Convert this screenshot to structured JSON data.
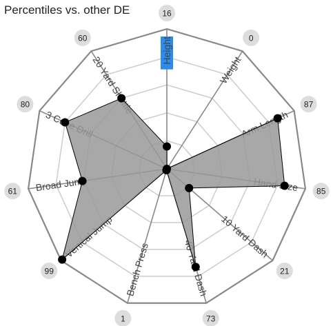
{
  "chart_data": {
    "type": "radar",
    "title": "Percentiles vs. other DE",
    "range": [
      0,
      100
    ],
    "grid_levels": [
      20,
      40,
      60,
      80
    ],
    "highlighted_axis": "Height",
    "colors": {
      "fill": "#999999",
      "outline": "#000000",
      "ring": "#888888",
      "grid": "#cccccc",
      "badge": "#dddddd",
      "highlight": "#2b8cec"
    },
    "axes": [
      {
        "label": "Height",
        "value": 16
      },
      {
        "label": "Weight",
        "value": 0
      },
      {
        "label": "Arm Length",
        "value": 87
      },
      {
        "label": "Hand Size",
        "value": 85
      },
      {
        "label": "10 Yard Dash",
        "value": 21
      },
      {
        "label": "40 Yard Dash",
        "value": 73
      },
      {
        "label": "Bench Press",
        "value": 1
      },
      {
        "label": "Vertical Jump",
        "value": 99
      },
      {
        "label": "Broad Jump",
        "value": 61
      },
      {
        "label": "3 Cone Drill",
        "value": 80
      },
      {
        "label": "20 Yard Shuttle",
        "value": 60
      }
    ]
  }
}
